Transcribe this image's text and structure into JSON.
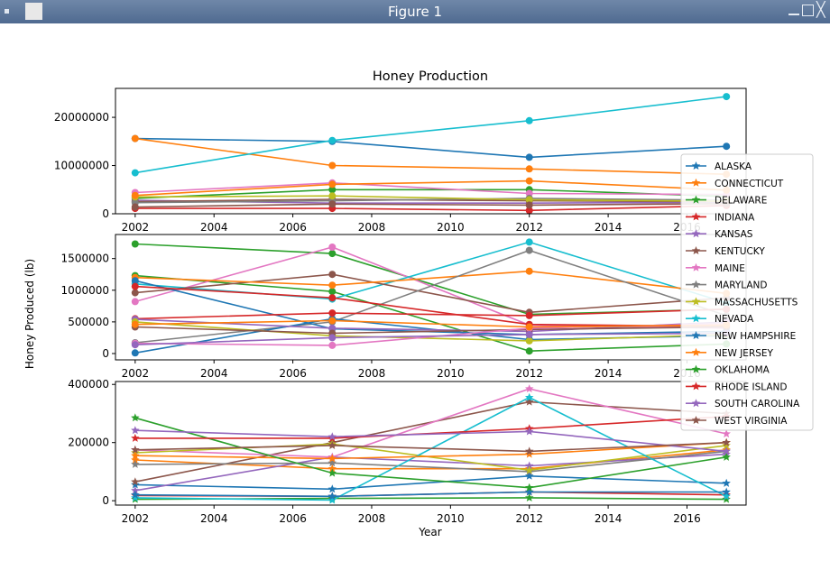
{
  "window": {
    "title": "Figure 1",
    "icons": {
      "app": "matplotlib-icon",
      "menu": "window-menu-icon",
      "minimize": "minimize-icon",
      "maximize": "maximize-icon",
      "close": "close-icon"
    }
  },
  "chart_data": {
    "type": "line",
    "title": "Honey Production",
    "xlabel": "Year",
    "ylabel": "Honey Produced (lb)",
    "x": [
      2002,
      2007,
      2012,
      2017
    ],
    "xticks": [
      2002,
      2004,
      2006,
      2008,
      2010,
      2012,
      2014,
      2016
    ],
    "legend": {
      "position": "right",
      "entries": [
        "ALASKA",
        "CONNECTICUT",
        "DELAWARE",
        "INDIANA",
        "KANSAS",
        "KENTUCKY",
        "MAINE",
        "MARYLAND",
        "MASSACHUSETTS",
        "NEVADA",
        "NEW HAMPSHIRE",
        "NEW JERSEY",
        "OKLAHOMA",
        "RHODE ISLAND",
        "SOUTH CAROLINA",
        "WEST VIRGINIA"
      ],
      "colors": [
        "#1f77b4",
        "#ff7f0e",
        "#2ca02c",
        "#d62728",
        "#9467bd",
        "#8c564b",
        "#e377c2",
        "#7f7f7f",
        "#bcbd22",
        "#17becf",
        "#1f77b4",
        "#ff7f0e",
        "#2ca02c",
        "#d62728",
        "#9467bd",
        "#8c564b"
      ],
      "marker": "star"
    },
    "panels": [
      {
        "marker": "circle",
        "ylim": [
          0,
          26000000
        ],
        "yticks": [
          0,
          10000000,
          20000000
        ],
        "yticklabels": [
          "0",
          "10000000",
          "20000000"
        ],
        "series": [
          {
            "color": "#1f77b4",
            "values": [
              15600000,
              15000000,
              11700000,
              14000000
            ]
          },
          {
            "color": "#ff7f0e",
            "values": [
              15600000,
              10000000,
              9300000,
              8200000
            ]
          },
          {
            "color": "#2ca02c",
            "values": [
              3200000,
              5000000,
              5000000,
              3600000
            ]
          },
          {
            "color": "#d62728",
            "values": [
              1100000,
              1100000,
              700000,
              1700000
            ]
          },
          {
            "color": "#9467bd",
            "values": [
              2800000,
              2200000,
              2200000,
              2400000
            ]
          },
          {
            "color": "#8c564b",
            "values": [
              2500000,
              3000000,
              2700000,
              2500000
            ]
          },
          {
            "color": "#e377c2",
            "values": [
              4400000,
              6400000,
              4200000,
              4000000
            ]
          },
          {
            "color": "#7f7f7f",
            "values": [
              2300000,
              2700000,
              3200000,
              2800000
            ]
          },
          {
            "color": "#bcbd22",
            "values": [
              3500000,
              3700000,
              2900000,
              2600000
            ]
          },
          {
            "color": "#17becf",
            "values": [
              8500000,
              15200000,
              19300000,
              24300000
            ]
          },
          {
            "color": "#ff7f0e",
            "values": [
              3800000,
              6100000,
              6800000,
              4900000
            ]
          },
          {
            "color": "#8c564b",
            "values": [
              1400000,
              2000000,
              1800000,
              2100000
            ]
          }
        ]
      },
      {
        "marker": "circle",
        "ylim": [
          -100000,
          1880000
        ],
        "yticks": [
          0,
          500000,
          1000000,
          1500000
        ],
        "yticklabels": [
          "0",
          "500000",
          "1000000",
          "1500000"
        ],
        "series": [
          {
            "color": "#2ca02c",
            "values": [
              1730000,
              1580000,
              620000,
              700000
            ]
          },
          {
            "color": "#2ca02c",
            "values": [
              1230000,
              980000,
              40000,
              150000
            ]
          },
          {
            "color": "#e377c2",
            "values": [
              820000,
              1680000,
              450000,
              400000
            ]
          },
          {
            "color": "#17becf",
            "values": [
              1100000,
              860000,
              1760000,
              800000
            ]
          },
          {
            "color": "#8c564b",
            "values": [
              960000,
              1250000,
              650000,
              880000
            ]
          },
          {
            "color": "#ff7f0e",
            "values": [
              1200000,
              1080000,
              1300000,
              950000
            ]
          },
          {
            "color": "#7f7f7f",
            "values": [
              170000,
              500000,
              1630000,
              600000
            ]
          },
          {
            "color": "#1f77b4",
            "values": [
              10000,
              550000,
              220000,
              280000
            ]
          },
          {
            "color": "#1f77b4",
            "values": [
              1150000,
              390000,
              300000,
              350000
            ]
          },
          {
            "color": "#d62728",
            "values": [
              1060000,
              880000,
              460000,
              430000
            ]
          },
          {
            "color": "#d62728",
            "values": [
              550000,
              640000,
              600000,
              700000
            ]
          },
          {
            "color": "#9467bd",
            "values": [
              540000,
              400000,
              350000,
              500000
            ]
          },
          {
            "color": "#bcbd22",
            "values": [
              500000,
              280000,
              200000,
              300000
            ]
          },
          {
            "color": "#8c564b",
            "values": [
              420000,
              320000,
              380000,
              420000
            ]
          },
          {
            "color": "#e377c2",
            "values": [
              160000,
              130000,
              400000,
              470000
            ]
          },
          {
            "color": "#ff7f0e",
            "values": [
              460000,
              520000,
              420000,
              450000
            ]
          },
          {
            "color": "#9467bd",
            "values": [
              140000,
              250000,
              300000,
              320000
            ]
          }
        ]
      },
      {
        "marker": "star",
        "ylim": [
          -15000,
          410000
        ],
        "yticks": [
          0,
          200000,
          400000
        ],
        "yticklabels": [
          "0",
          "200000",
          "400000"
        ],
        "series": [
          {
            "color": "#1f77b4",
            "values": [
              55000,
              40000,
              85000,
              60000
            ]
          },
          {
            "color": "#ff7f0e",
            "values": [
              140000,
              110000,
              110000,
              175000
            ]
          },
          {
            "color": "#2ca02c",
            "values": [
              5000,
              8000,
              10000,
              5000
            ]
          },
          {
            "color": "#d62728",
            "values": [
              18000,
              15000,
              30000,
              20000
            ]
          },
          {
            "color": "#9467bd",
            "values": [
              35000,
              150000,
              120000,
              160000
            ]
          },
          {
            "color": "#8c564b",
            "values": [
              65000,
              200000,
              340000,
              300000
            ]
          },
          {
            "color": "#e377c2",
            "values": [
              175000,
              150000,
              385000,
              230000
            ]
          },
          {
            "color": "#7f7f7f",
            "values": [
              125000,
              130000,
              100000,
              170000
            ]
          },
          {
            "color": "#bcbd22",
            "values": [
              165000,
              195000,
              105000,
              190000
            ]
          },
          {
            "color": "#17becf",
            "values": [
              10000,
              2000,
              355000,
              15000
            ]
          },
          {
            "color": "#1f77b4",
            "values": [
              20000,
              15000,
              30000,
              30000
            ]
          },
          {
            "color": "#ff7f0e",
            "values": [
              155000,
              145000,
              160000,
              200000
            ]
          },
          {
            "color": "#2ca02c",
            "values": [
              285000,
              95000,
              45000,
              150000
            ]
          },
          {
            "color": "#d62728",
            "values": [
              215000,
              215000,
              248000,
              290000
            ]
          },
          {
            "color": "#9467bd",
            "values": [
              242000,
              220000,
              238000,
              170000
            ]
          },
          {
            "color": "#8c564b",
            "values": [
              175000,
              190000,
              170000,
              200000
            ]
          }
        ]
      }
    ]
  }
}
